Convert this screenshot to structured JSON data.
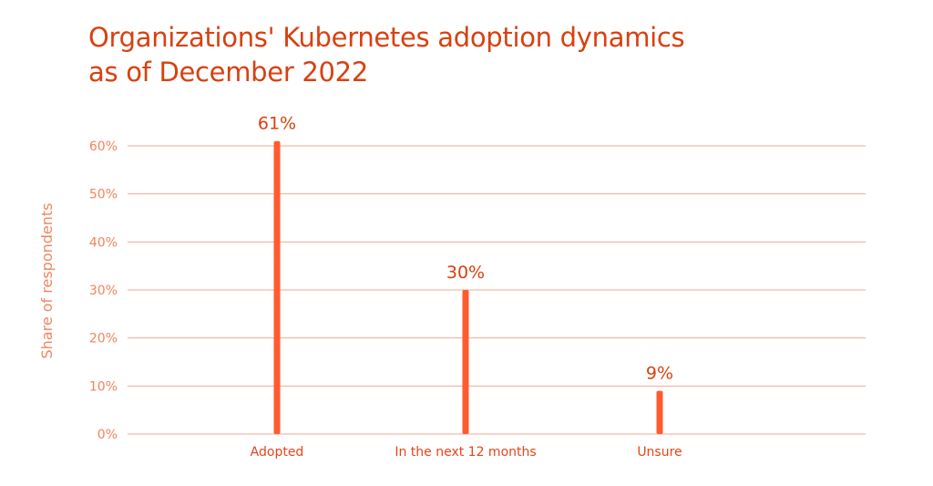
{
  "chart_data": {
    "type": "bar",
    "title": "Organizations' Kubernetes adoption dynamics as of December 2022",
    "title_lines": [
      "Organizations' Kubernetes adoption dynamics",
      "as of December 2022"
    ],
    "ylabel": "Share of respondents",
    "xlabel": "",
    "categories": [
      "Adopted",
      "In the next 12 months",
      "Unsure"
    ],
    "values": [
      61,
      30,
      9
    ],
    "data_labels": [
      "61%",
      "30%",
      "9%"
    ],
    "ylim": [
      0,
      60
    ],
    "yticks": [
      0,
      10,
      20,
      30,
      40,
      50,
      60
    ],
    "ytick_labels": [
      "0%",
      "10%",
      "20%",
      "30%",
      "40%",
      "50%",
      "60%"
    ],
    "grid": true,
    "legend": "none"
  },
  "colors": {
    "bar": "#ff5b2e",
    "title": "#d9400f",
    "data_label": "#d9400f",
    "axis_text": "#f0845f",
    "category_text": "#e5441a",
    "gridline": "#f7a68c"
  }
}
